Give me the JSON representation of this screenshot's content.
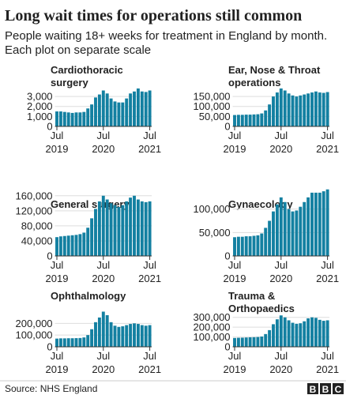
{
  "header": {
    "title": "Long wait times for operations still common",
    "subtitle": [
      "People waiting 18+ weeks for treatment in England by month.",
      "Each plot on separate scale"
    ]
  },
  "chart_data": [
    {
      "type": "bar",
      "title": [
        "Cardiothoracic",
        "surgery"
      ],
      "color": "#1380a1",
      "grid": true,
      "categories": [
        "Jul 2019",
        null,
        null,
        null,
        null,
        null,
        null,
        null,
        null,
        null,
        null,
        null,
        "Jul 2020",
        null,
        null,
        null,
        null,
        null,
        null,
        null,
        null,
        null,
        null,
        null,
        "Jul 2021"
      ],
      "values": [
        1500,
        1500,
        1450,
        1400,
        1350,
        1400,
        1400,
        1450,
        1800,
        2200,
        2900,
        3200,
        3600,
        3300,
        2800,
        2500,
        2400,
        2400,
        2800,
        3300,
        3500,
        3800,
        3500,
        3450,
        3600
      ],
      "ylim": [
        0,
        3800
      ],
      "yticks": [
        0,
        {
          "value": 1000,
          "label": "1,000"
        },
        {
          "value": 2000,
          "label": "2,000"
        },
        {
          "value": 3000,
          "label": "3,000"
        }
      ]
    },
    {
      "type": "bar",
      "title": [
        "Ear, Nose & Throat",
        "operations"
      ],
      "color": "#1380a1",
      "grid": true,
      "categories": [
        "Jul 2019",
        null,
        null,
        null,
        null,
        null,
        null,
        null,
        null,
        null,
        null,
        null,
        "Jul 2020",
        null,
        null,
        null,
        null,
        null,
        null,
        null,
        null,
        null,
        null,
        null,
        "Jul 2021"
      ],
      "values": [
        57000,
        58000,
        58000,
        59000,
        59000,
        60000,
        61000,
        65000,
        80000,
        110000,
        150000,
        170000,
        190000,
        180000,
        165000,
        155000,
        150000,
        155000,
        160000,
        165000,
        170000,
        175000,
        170000,
        168000,
        172000
      ],
      "ylim": [
        0,
        190000
      ],
      "yticks": [
        0,
        {
          "value": 50000,
          "label": "50,000"
        },
        {
          "value": 100000,
          "label": "100,000"
        },
        {
          "value": 150000,
          "label": "150,000"
        }
      ]
    },
    {
      "type": "bar",
      "title": [
        "General surgery"
      ],
      "color": "#1380a1",
      "grid": true,
      "categories": [
        "Jul 2019",
        null,
        null,
        null,
        null,
        null,
        null,
        null,
        null,
        null,
        null,
        null,
        "Jul 2020",
        null,
        null,
        null,
        null,
        null,
        null,
        null,
        null,
        null,
        null,
        null,
        "Jul 2021"
      ],
      "values": [
        50000,
        52000,
        53000,
        54000,
        55000,
        56000,
        58000,
        62000,
        75000,
        100000,
        125000,
        145000,
        160000,
        150000,
        140000,
        135000,
        130000,
        135000,
        145000,
        155000,
        160000,
        150000,
        145000,
        143000,
        145000
      ],
      "ylim": [
        0,
        170000
      ],
      "yticks": [
        0,
        {
          "value": 40000,
          "label": "40,000"
        },
        {
          "value": 80000,
          "label": "80,000"
        },
        {
          "value": 120000,
          "label": "120,000"
        },
        {
          "value": 160000,
          "label": "160,000"
        }
      ]
    },
    {
      "type": "bar",
      "title": [
        "Gynaecology"
      ],
      "color": "#1380a1",
      "grid": true,
      "categories": [
        "Jul 2019",
        null,
        null,
        null,
        null,
        null,
        null,
        null,
        null,
        null,
        null,
        null,
        "Jul 2020",
        null,
        null,
        null,
        null,
        null,
        null,
        null,
        null,
        null,
        null,
        null,
        "Jul 2021"
      ],
      "values": [
        40000,
        41000,
        41000,
        42000,
        42000,
        43000,
        44000,
        48000,
        60000,
        75000,
        95000,
        110000,
        125000,
        115000,
        100000,
        95000,
        97000,
        105000,
        115000,
        125000,
        135000,
        135000,
        135000,
        138000,
        142000
      ],
      "ylim": [
        0,
        150000
      ],
      "yticks": [
        0,
        {
          "value": 50000,
          "label": "50,000"
        },
        {
          "value": 100000,
          "label": "100,000"
        }
      ]
    },
    {
      "type": "bar",
      "title": [
        "Ophthalmology"
      ],
      "color": "#1380a1",
      "grid": true,
      "categories": [
        "Jul 2019",
        null,
        null,
        null,
        null,
        null,
        null,
        null,
        null,
        null,
        null,
        null,
        "Jul 2020",
        null,
        null,
        null,
        null,
        null,
        null,
        null,
        null,
        null,
        null,
        null,
        "Jul 2021"
      ],
      "values": [
        70000,
        72000,
        72000,
        73000,
        73000,
        74000,
        75000,
        80000,
        100000,
        150000,
        210000,
        250000,
        300000,
        270000,
        210000,
        180000,
        170000,
        175000,
        185000,
        195000,
        200000,
        195000,
        185000,
        180000,
        185000
      ],
      "ylim": [
        0,
        310000
      ],
      "yticks": [
        0,
        {
          "value": 100000,
          "label": "100,000"
        },
        {
          "value": 200000,
          "label": "200,000"
        }
      ]
    },
    {
      "type": "bar",
      "title": [
        "Trauma &",
        "Orthopaedics"
      ],
      "color": "#1380a1",
      "grid": true,
      "categories": [
        "Jul 2019",
        null,
        null,
        null,
        null,
        null,
        null,
        null,
        null,
        null,
        null,
        null,
        "Jul 2020",
        null,
        null,
        null,
        null,
        null,
        null,
        null,
        null,
        null,
        null,
        null,
        "Jul 2021"
      ],
      "values": [
        90000,
        92000,
        93000,
        95000,
        97000,
        98000,
        100000,
        105000,
        130000,
        170000,
        230000,
        280000,
        320000,
        300000,
        270000,
        245000,
        235000,
        240000,
        260000,
        290000,
        300000,
        295000,
        275000,
        265000,
        270000
      ],
      "ylim": [
        0,
        330000
      ],
      "yticks": [
        0,
        {
          "value": 100000,
          "label": "100,000"
        },
        {
          "value": 200000,
          "label": "200,000"
        },
        {
          "value": 300000,
          "label": "300,000"
        }
      ]
    }
  ],
  "footer": {
    "source": "Source: NHS England",
    "logo": [
      "B",
      "B",
      "C"
    ]
  }
}
